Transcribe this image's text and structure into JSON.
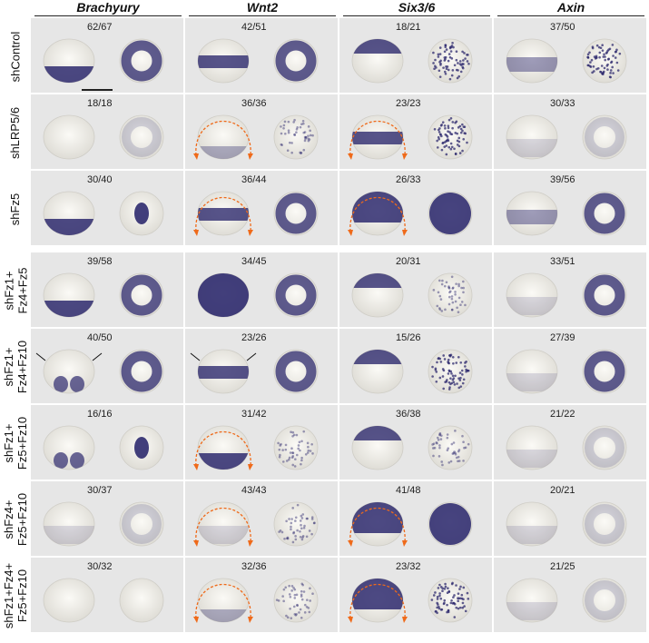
{
  "columns": [
    {
      "label": "Brachyury"
    },
    {
      "label": "Wnt2"
    },
    {
      "label": "Six3/6"
    },
    {
      "label": "Axin"
    }
  ],
  "rows": [
    {
      "label": "shControl",
      "counts": [
        "62/67",
        "42/51",
        "18/21",
        "37/50"
      ]
    },
    {
      "label": "shLRP5/6",
      "counts": [
        "18/18",
        "36/36",
        "23/23",
        "30/33"
      ]
    },
    {
      "label": "shFz5",
      "counts": [
        "30/40",
        "36/44",
        "26/33",
        "39/56"
      ]
    },
    {
      "label": "shFz1+\nFz4+Fz5",
      "counts": [
        "39/58",
        "34/45",
        "20/31",
        "33/51"
      ]
    },
    {
      "label": "shFz1+\nFz4+Fz10",
      "counts": [
        "40/50",
        "23/26",
        "15/26",
        "27/39"
      ]
    },
    {
      "label": "shFz1+\nFz5+Fz10",
      "counts": [
        "16/16",
        "31/42",
        "36/38",
        "21/22"
      ]
    },
    {
      "label": "shFz4+\nFz5+Fz10",
      "counts": [
        "30/37",
        "43/43",
        "41/48",
        "20/21"
      ]
    },
    {
      "label": "shFz1+Fz4+\nFz5+Fz10",
      "counts": [
        "30/32",
        "32/36",
        "23/32",
        "21/25"
      ]
    }
  ],
  "colors": {
    "background": "#e6e6e6",
    "embryo": "#f0efea",
    "stain": "#2e2a6e",
    "arrow_orange": "#ef6a1a",
    "arrow_black": "#111111"
  }
}
